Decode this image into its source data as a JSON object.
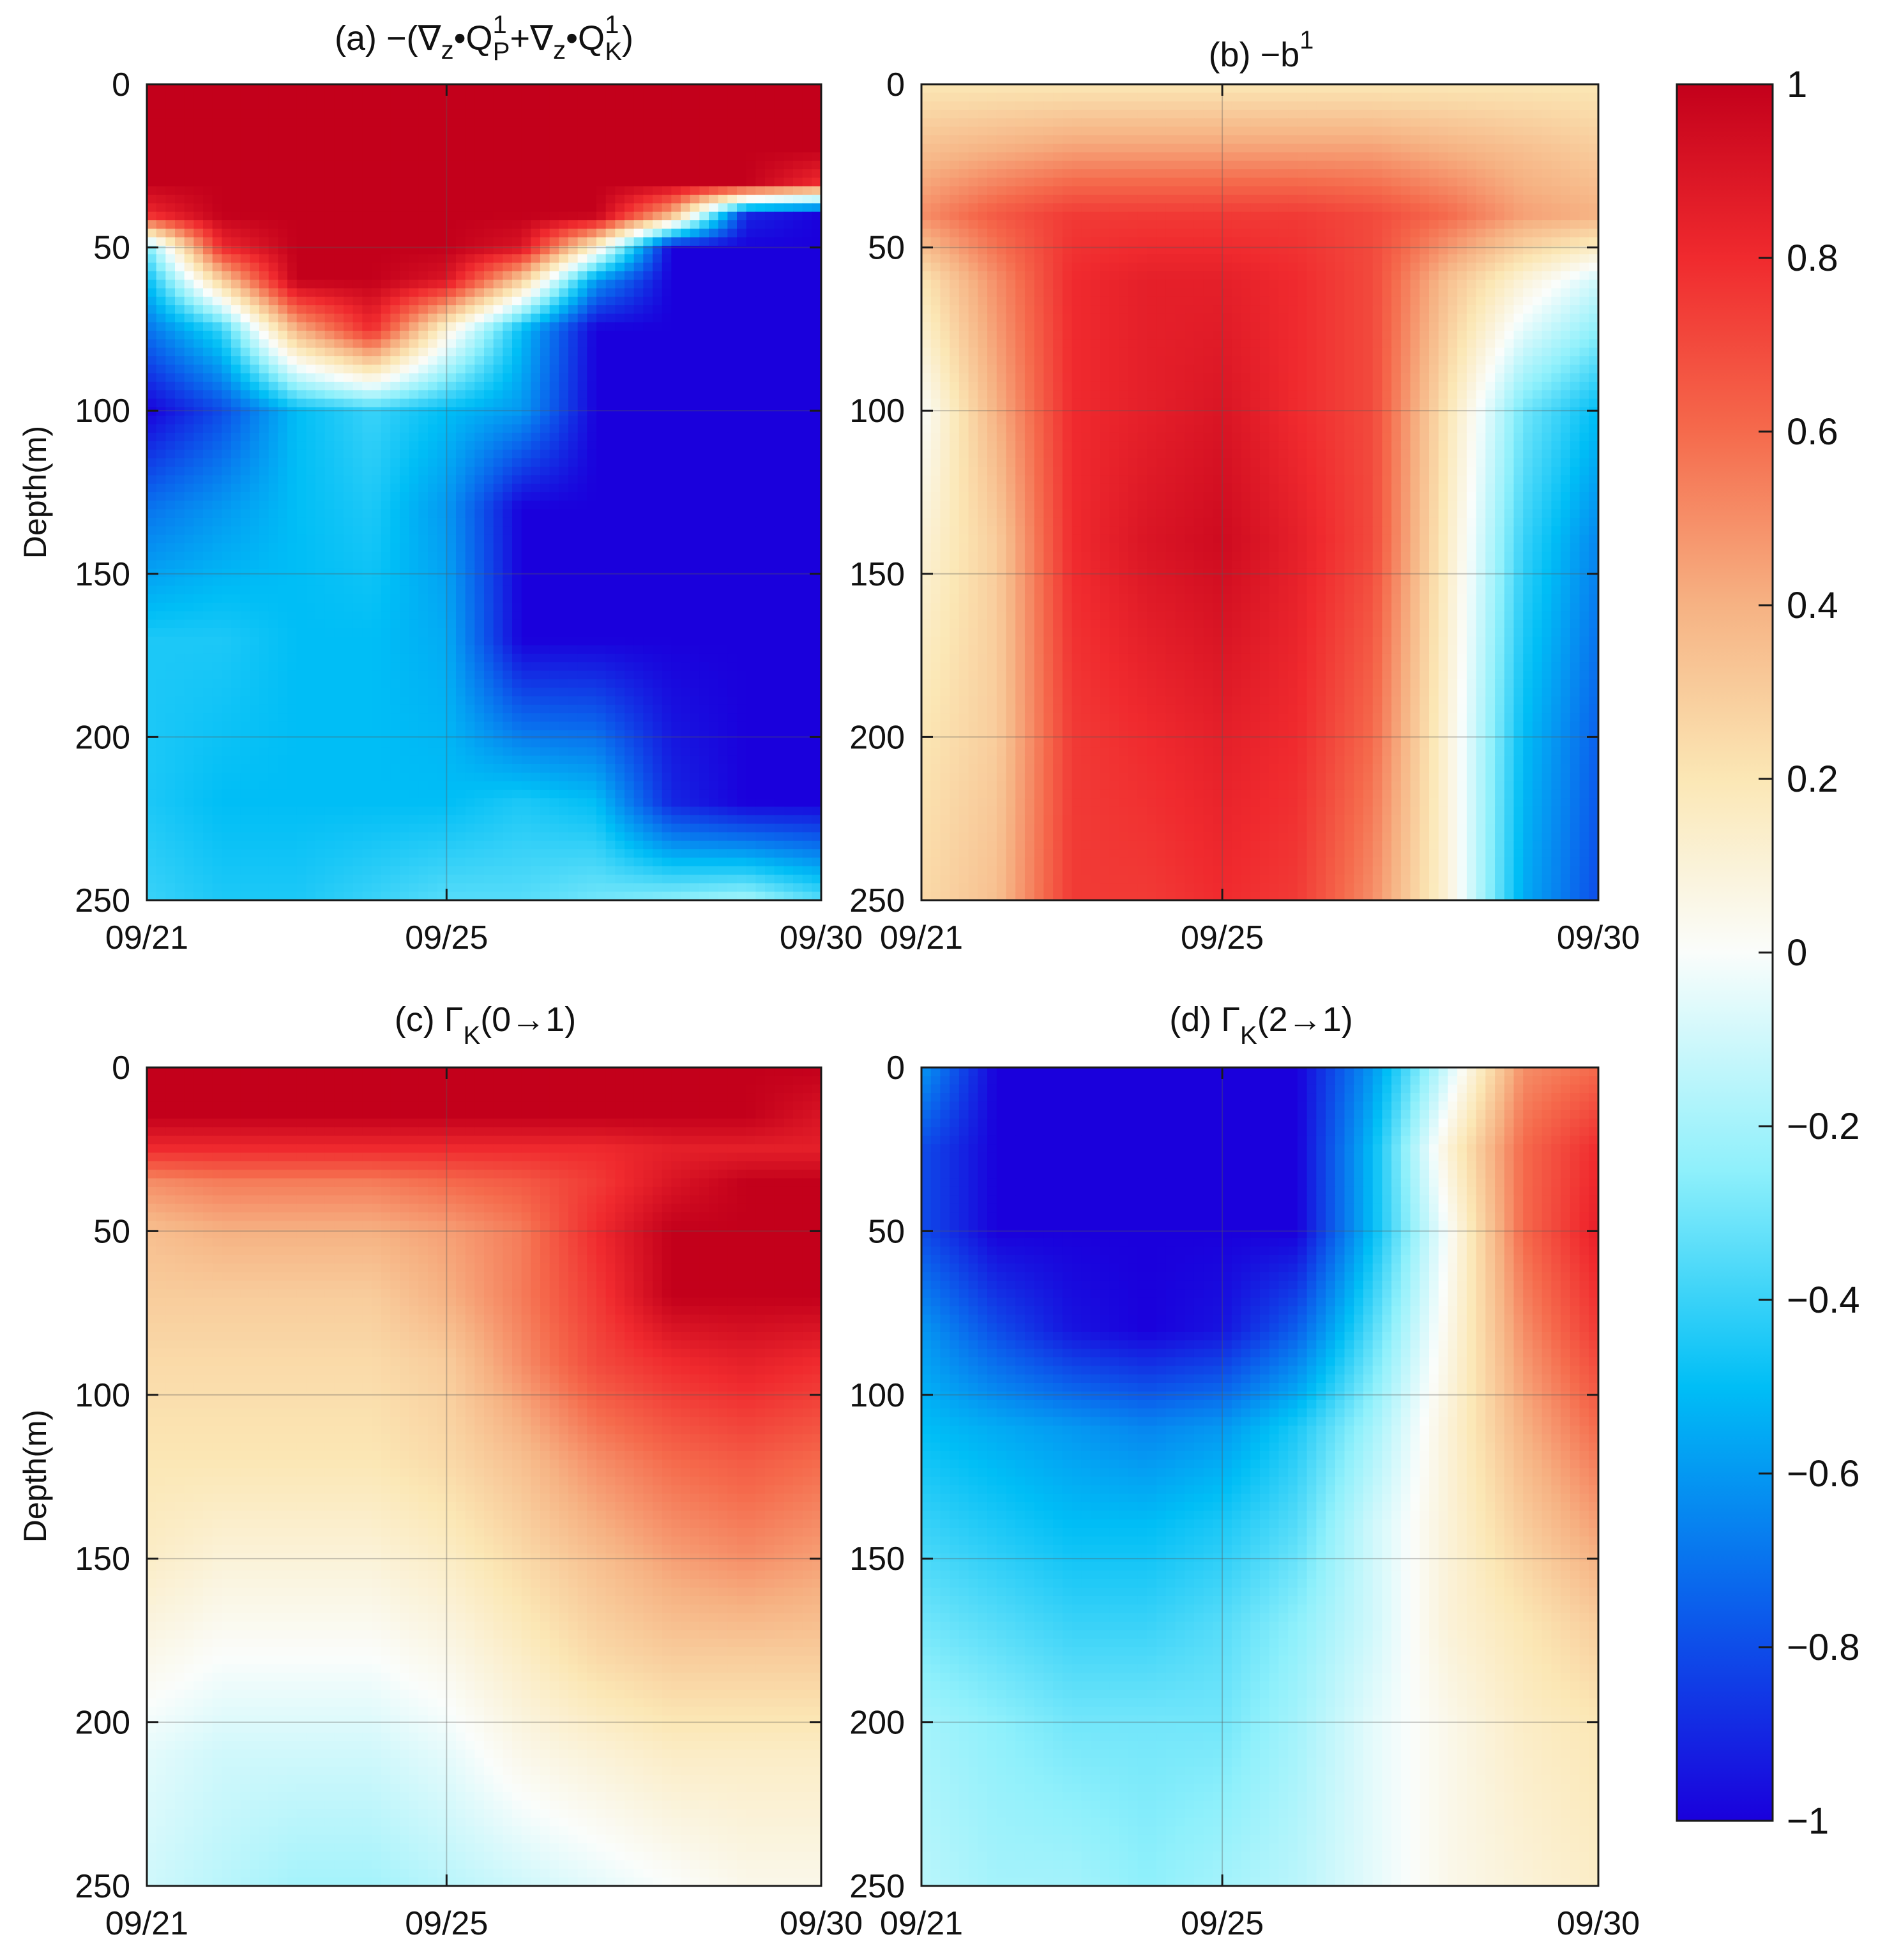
{
  "chart_data": [
    {
      "type": "heatmap",
      "id": "a",
      "title_text": "(a) −(∇z•QP1+∇z•QK1)",
      "title_parts": {
        "prefix": "(a) −(∇",
        "sub1": "z",
        "dot1": "•Q",
        "sup1": "1",
        "subP": "P",
        "plus": "+∇",
        "sub2": "z",
        "dot2": "•Q",
        "sup2": "1",
        "subK": "K",
        "close": ")"
      },
      "ylabel": "Depth(m)",
      "x_ticks": [
        "09/21",
        "09/25",
        "09/30"
      ],
      "y_ticks": [
        "0",
        "50",
        "100",
        "150",
        "200",
        "250"
      ],
      "x_range_days": [
        0,
        9
      ],
      "y_range_m": [
        0,
        250
      ],
      "y_reversed": true,
      "grid": true,
      "depths_m": [
        0,
        20,
        30,
        40,
        50,
        60,
        75,
        100,
        130,
        170,
        220,
        250
      ],
      "times_days": [
        0,
        1,
        2,
        3,
        4,
        5,
        6,
        7,
        8,
        9
      ],
      "values": [
        [
          1,
          1,
          1,
          1,
          1,
          1,
          1,
          1,
          1,
          1
        ],
        [
          1,
          1,
          1,
          1,
          1,
          1,
          1,
          1,
          1,
          1
        ],
        [
          1,
          1,
          1,
          1,
          1,
          1,
          1,
          1,
          1,
          0.8
        ],
        [
          0.8,
          1,
          1,
          1,
          1,
          1,
          1,
          0.4,
          -0.9,
          -1
        ],
        [
          -0.3,
          0.8,
          1,
          1,
          1,
          0.9,
          0.1,
          -1,
          -1,
          -1
        ],
        [
          -0.5,
          0.3,
          1,
          1,
          0.9,
          0.3,
          -0.6,
          -1,
          -1,
          -1
        ],
        [
          -0.7,
          -0.4,
          0.4,
          0.8,
          0.1,
          -0.5,
          -1,
          -1,
          -1,
          -1
        ],
        [
          -1,
          -0.8,
          -0.5,
          -0.4,
          -0.5,
          -0.6,
          -1,
          -1,
          -1,
          -1
        ],
        [
          -0.7,
          -0.6,
          -0.5,
          -0.45,
          -0.6,
          -1,
          -1,
          -1,
          -1,
          -1
        ],
        [
          -0.45,
          -0.45,
          -0.5,
          -0.5,
          -0.55,
          -1,
          -1,
          -1,
          -1,
          -1
        ],
        [
          -0.45,
          -0.5,
          -0.5,
          -0.5,
          -0.5,
          -0.45,
          -0.5,
          -0.9,
          -1,
          -1
        ],
        [
          -0.4,
          -0.45,
          -0.45,
          -0.4,
          -0.35,
          -0.35,
          -0.3,
          -0.25,
          -0.2,
          -0.35
        ]
      ]
    },
    {
      "type": "heatmap",
      "id": "b",
      "title_text": "(b) −b1",
      "title_parts": {
        "prefix": "(b) −b",
        "sup": "1"
      },
      "ylabel": "",
      "x_ticks": [
        "09/21",
        "09/25",
        "09/30"
      ],
      "y_ticks": [
        "0",
        "50",
        "100",
        "150",
        "200",
        "250"
      ],
      "x_range_days": [
        0,
        9
      ],
      "y_range_m": [
        0,
        250
      ],
      "y_reversed": true,
      "grid": true,
      "depths_m": [
        0,
        20,
        40,
        60,
        100,
        140,
        200,
        250
      ],
      "times_days": [
        0,
        1,
        2,
        3,
        4,
        5,
        6,
        7,
        8,
        9
      ],
      "values": [
        [
          0.2,
          0.2,
          0.2,
          0.2,
          0.2,
          0.2,
          0.2,
          0.2,
          0.2,
          0.2
        ],
        [
          0.35,
          0.4,
          0.45,
          0.45,
          0.45,
          0.45,
          0.45,
          0.4,
          0.35,
          0.3
        ],
        [
          0.5,
          0.65,
          0.75,
          0.75,
          0.75,
          0.75,
          0.7,
          0.6,
          0.45,
          0.4
        ],
        [
          0.2,
          0.5,
          0.8,
          0.85,
          0.85,
          0.8,
          0.7,
          0.35,
          0.1,
          -0.1
        ],
        [
          0.0,
          0.4,
          0.8,
          0.85,
          0.9,
          0.8,
          0.7,
          0.2,
          -0.3,
          -0.5
        ],
        [
          0.1,
          0.3,
          0.8,
          0.9,
          0.95,
          0.85,
          0.7,
          0.15,
          -0.4,
          -0.65
        ],
        [
          0.2,
          0.3,
          0.75,
          0.8,
          0.85,
          0.8,
          0.6,
          0.1,
          -0.5,
          -0.75
        ],
        [
          0.25,
          0.35,
          0.75,
          0.75,
          0.8,
          0.75,
          0.5,
          0.1,
          -0.55,
          -0.8
        ]
      ]
    },
    {
      "type": "heatmap",
      "id": "c",
      "title_text": "(c) ΓK(0→1)",
      "title_parts": {
        "prefix": "(c) Γ",
        "sub": "K",
        "suffix": "(0→1)"
      },
      "ylabel": "Depth(m)",
      "x_ticks": [
        "09/21",
        "09/25",
        "09/30"
      ],
      "y_ticks": [
        "0",
        "50",
        "100",
        "150",
        "200",
        "250"
      ],
      "x_range_days": [
        0,
        9
      ],
      "y_range_m": [
        0,
        250
      ],
      "y_reversed": true,
      "grid": true,
      "depths_m": [
        0,
        15,
        25,
        35,
        50,
        70,
        90,
        120,
        150,
        180,
        210,
        250
      ],
      "times_days": [
        0,
        1,
        2,
        3,
        4,
        5,
        6,
        7,
        8,
        9
      ],
      "values": [
        [
          1,
          1,
          1,
          1,
          1,
          1,
          1,
          1,
          1,
          1
        ],
        [
          1,
          1,
          1,
          1,
          1,
          1,
          1,
          1,
          1,
          0.9
        ],
        [
          0.8,
          0.8,
          0.8,
          0.8,
          0.8,
          0.8,
          0.8,
          0.85,
          0.85,
          0.85
        ],
        [
          0.5,
          0.55,
          0.55,
          0.55,
          0.6,
          0.65,
          0.75,
          0.9,
          1,
          1
        ],
        [
          0.35,
          0.4,
          0.4,
          0.4,
          0.45,
          0.55,
          0.8,
          1,
          1,
          1
        ],
        [
          0.3,
          0.3,
          0.3,
          0.3,
          0.4,
          0.55,
          0.75,
          1,
          1,
          1
        ],
        [
          0.25,
          0.25,
          0.25,
          0.25,
          0.3,
          0.5,
          0.7,
          0.8,
          0.85,
          0.8
        ],
        [
          0.2,
          0.2,
          0.2,
          0.2,
          0.25,
          0.35,
          0.5,
          0.6,
          0.65,
          0.6
        ],
        [
          0.15,
          0.1,
          0.1,
          0.1,
          0.15,
          0.25,
          0.35,
          0.45,
          0.5,
          0.45
        ],
        [
          0.05,
          0.0,
          0.0,
          0.0,
          0.05,
          0.15,
          0.25,
          0.3,
          0.3,
          0.3
        ],
        [
          -0.05,
          -0.1,
          -0.1,
          -0.1,
          -0.05,
          0.05,
          0.1,
          0.15,
          0.15,
          0.15
        ],
        [
          -0.1,
          -0.15,
          -0.2,
          -0.2,
          -0.15,
          -0.1,
          -0.05,
          0.0,
          0.05,
          0.05
        ]
      ]
    },
    {
      "type": "heatmap",
      "id": "d",
      "title_text": "(d) ΓK(2→1)",
      "title_parts": {
        "prefix": "(d) Γ",
        "sub": "K",
        "suffix": "(2→1)"
      },
      "ylabel": "",
      "x_ticks": [
        "09/21",
        "09/25",
        "09/30"
      ],
      "y_ticks": [
        "0",
        "50",
        "100",
        "150",
        "200",
        "250"
      ],
      "x_range_days": [
        0,
        9
      ],
      "y_range_m": [
        0,
        250
      ],
      "y_reversed": true,
      "grid": true,
      "depths_m": [
        0,
        25,
        50,
        80,
        110,
        140,
        170,
        200,
        250
      ],
      "times_days": [
        0,
        1,
        2,
        3,
        4,
        5,
        6,
        7,
        8,
        9
      ],
      "values": [
        [
          -0.6,
          -1,
          -1,
          -1,
          -1,
          -1,
          -0.6,
          -0.1,
          0.5,
          0.6
        ],
        [
          -0.8,
          -1,
          -1,
          -1,
          -1,
          -1,
          -0.5,
          0.1,
          0.6,
          0.8
        ],
        [
          -0.8,
          -1,
          -1,
          -1,
          -1,
          -1,
          -0.5,
          0.0,
          0.6,
          0.85
        ],
        [
          -0.6,
          -0.8,
          -0.95,
          -1,
          -0.95,
          -0.75,
          -0.35,
          0.05,
          0.5,
          0.75
        ],
        [
          -0.5,
          -0.55,
          -0.6,
          -0.65,
          -0.6,
          -0.45,
          -0.2,
          0.1,
          0.4,
          0.6
        ],
        [
          -0.4,
          -0.45,
          -0.5,
          -0.5,
          -0.45,
          -0.35,
          -0.1,
          0.1,
          0.3,
          0.45
        ],
        [
          -0.3,
          -0.35,
          -0.4,
          -0.4,
          -0.35,
          -0.25,
          -0.1,
          0.1,
          0.2,
          0.3
        ],
        [
          -0.2,
          -0.25,
          -0.3,
          -0.3,
          -0.3,
          -0.2,
          -0.05,
          0.05,
          0.15,
          0.2
        ],
        [
          -0.15,
          -0.2,
          -0.2,
          -0.25,
          -0.2,
          -0.15,
          -0.05,
          0.05,
          0.1,
          0.15
        ]
      ]
    }
  ],
  "colorbar": {
    "ticks": [
      "1",
      "0.8",
      "0.6",
      "0.4",
      "0.2",
      "0",
      "−0.2",
      "−0.4",
      "−0.6",
      "−0.8",
      "−1"
    ],
    "range": [
      -1,
      1
    ],
    "stops": [
      {
        "v": -1.0,
        "color": "#1a00dc"
      },
      {
        "v": -0.75,
        "color": "#0b60ec"
      },
      {
        "v": -0.5,
        "color": "#00bef6"
      },
      {
        "v": -0.25,
        "color": "#8ff0fb"
      },
      {
        "v": 0.0,
        "color": "#fafdfb"
      },
      {
        "v": 0.2,
        "color": "#fbe7b5"
      },
      {
        "v": 0.4,
        "color": "#f6b283"
      },
      {
        "v": 0.6,
        "color": "#f56a4c"
      },
      {
        "v": 0.8,
        "color": "#f02a2e"
      },
      {
        "v": 1.0,
        "color": "#c3001b"
      }
    ]
  }
}
